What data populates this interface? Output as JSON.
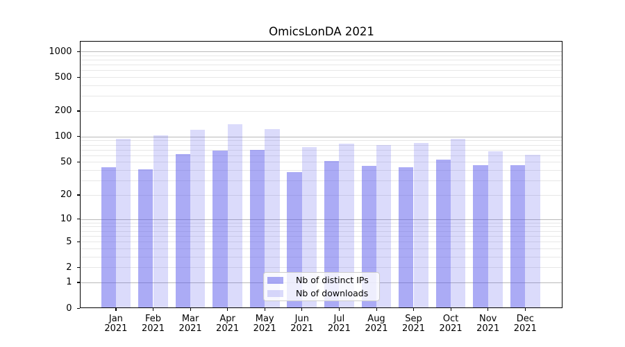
{
  "chart_data": {
    "type": "bar",
    "title": "OmicsLonDA 2021",
    "categories": [
      "Jan",
      "Feb",
      "Mar",
      "Apr",
      "May",
      "Jun",
      "Jul",
      "Aug",
      "Sep",
      "Oct",
      "Nov",
      "Dec"
    ],
    "year": "2021",
    "series": [
      {
        "name": "Nb of distinct IPs",
        "color": "#5555EB7E",
        "values": [
          43,
          41,
          62,
          68,
          70,
          38,
          51,
          45,
          43,
          53,
          46,
          46
        ]
      },
      {
        "name": "Nb of downloads",
        "color": "#5555EB36",
        "values": [
          95,
          103,
          121,
          140,
          123,
          75,
          83,
          80,
          84,
          95,
          67,
          61
        ]
      }
    ],
    "y_ticks": [
      0,
      1,
      2,
      5,
      10,
      20,
      50,
      100,
      200,
      500,
      1000
    ],
    "y_scale": "log-like log10(1+x)",
    "ylim": [
      0,
      1350
    ],
    "grid": true,
    "legend_position": "lower center inside",
    "axis_color": "#000000",
    "major_grid_color": "#b9b9b9",
    "minor_grid_color": "#e7e7e7"
  }
}
